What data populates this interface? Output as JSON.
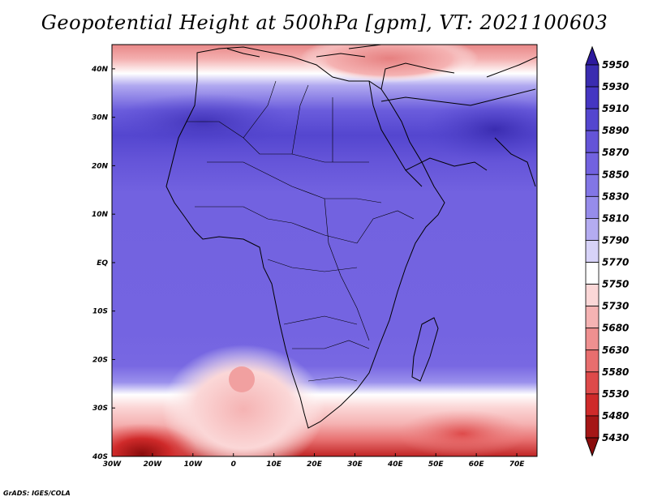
{
  "title": "Geopotential Height at 500hPa [gpm], VT: 2021100603",
  "credit": "GrADS: IGES/COLA",
  "map": {
    "projection": "lat-lon",
    "lon_range": [
      -30,
      75
    ],
    "lat_range": [
      -40,
      45
    ],
    "lon_ticks": [
      "30W",
      "20W",
      "10W",
      "0",
      "10E",
      "20E",
      "30E",
      "40E",
      "50E",
      "60E",
      "70E"
    ],
    "lat_ticks": [
      "40N",
      "30N",
      "20N",
      "10N",
      "EQ",
      "10S",
      "20S",
      "30S",
      "40S"
    ],
    "lon_tick_values": [
      -30,
      -20,
      -10,
      0,
      10,
      20,
      30,
      40,
      50,
      60,
      70
    ],
    "lat_tick_values": [
      40,
      30,
      20,
      10,
      0,
      -10,
      -20,
      -30,
      -40
    ]
  },
  "colorbar": {
    "levels": [
      "5950",
      "5930",
      "5910",
      "5890",
      "5870",
      "5850",
      "5830",
      "5810",
      "5790",
      "5770",
      "5750",
      "5730",
      "5680",
      "5630",
      "5580",
      "5530",
      "5480",
      "5430"
    ],
    "colors": [
      "#2d1a9e",
      "#3a2cb0",
      "#4536c2",
      "#5446cf",
      "#6454d8",
      "#7262e0",
      "#8276e6",
      "#968ceb",
      "#b4acf1",
      "#d7d3f8",
      "#ffffff",
      "#fbd7d7",
      "#f5b3b3",
      "#ef9090",
      "#e86e6e",
      "#de4a4a",
      "#cf2a2a",
      "#a51616",
      "#8a0c0c"
    ]
  }
}
